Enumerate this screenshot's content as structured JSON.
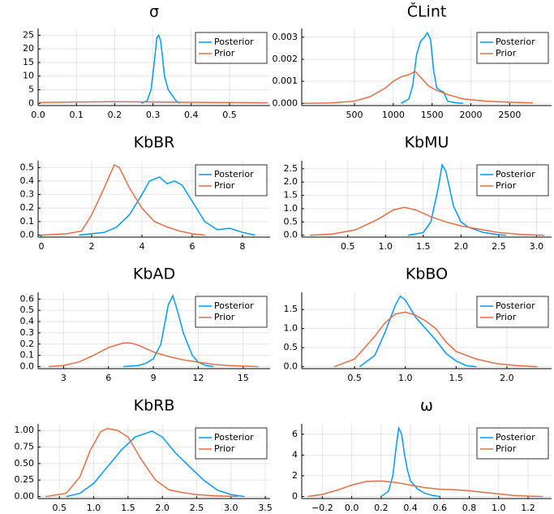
{
  "chart_data": [
    {
      "type": "line",
      "title": "σ",
      "legend": "topright",
      "grid": true,
      "xlim": [
        0,
        0.606
      ],
      "ylim": [
        -0.8,
        27.5
      ],
      "xticks": [
        {
          "value": 0,
          "label": "0.0"
        },
        0.1,
        0.2,
        0.3,
        0.4,
        0.5
      ],
      "yticks": [
        0,
        5,
        10,
        15,
        20,
        25
      ],
      "series": [
        {
          "name": "Posterior",
          "color": "#009AF9",
          "x": [
            0.27,
            0.285,
            0.295,
            0.305,
            0.31,
            0.315,
            0.32,
            0.325,
            0.33,
            0.34,
            0.35,
            0.36,
            0.37
          ],
          "values": [
            0,
            1,
            5,
            17,
            24,
            25,
            23,
            17,
            10,
            5,
            3,
            1,
            0
          ]
        },
        {
          "name": "Prior",
          "color": "#E36F47",
          "x": [
            0,
            0.1,
            0.2,
            0.3,
            0.4,
            0.5,
            0.6
          ],
          "values": [
            0.3,
            0.5,
            0.6,
            0.5,
            0.4,
            0.3,
            0.2
          ]
        }
      ]
    },
    {
      "type": "line",
      "title": "ČLint",
      "legend": "topright",
      "grid": true,
      "xlim": [
        -180,
        3040
      ],
      "ylim": [
        -0.0001,
        0.0034
      ],
      "xticks": [
        500,
        1000,
        1500,
        2000,
        2500
      ],
      "yticks": [
        {
          "value": 0,
          "label": "0.000"
        },
        0.001,
        0.002,
        0.003
      ],
      "series": [
        {
          "name": "Posterior",
          "color": "#009AF9",
          "x": [
            1100,
            1200,
            1250,
            1300,
            1350,
            1400,
            1440,
            1480,
            1520,
            1560,
            1600,
            1650,
            1700,
            1800,
            1900
          ],
          "values": [
            0,
            0.0002,
            0.0008,
            0.0022,
            0.0028,
            0.003,
            0.0032,
            0.0029,
            0.0015,
            0.0007,
            0.0006,
            0.0005,
            0.0001,
            3e-05,
            0
          ]
        },
        {
          "name": "Prior",
          "color": "#E36F47",
          "x": [
            -150,
            200,
            500,
            700,
            900,
            1000,
            1100,
            1200,
            1280,
            1350,
            1450,
            1550,
            1700,
            1900,
            2200,
            2500,
            2800
          ],
          "values": [
            0,
            2e-05,
            0.0001,
            0.0003,
            0.0007,
            0.001,
            0.0012,
            0.0013,
            0.00145,
            0.0012,
            0.0008,
            0.0006,
            0.0004,
            0.0002,
            0.0001,
            5e-05,
            2e-05
          ]
        }
      ]
    },
    {
      "type": "line",
      "title": "KbBR",
      "legend": "topright",
      "grid": true,
      "xlim": [
        -0.13,
        9.1
      ],
      "ylim": [
        -0.015,
        0.55
      ],
      "xticks": [
        0,
        2,
        4,
        6,
        8
      ],
      "yticks": [
        {
          "value": 0,
          "label": "0.0"
        },
        0.1,
        0.2,
        0.3,
        0.4,
        0.5
      ],
      "series": [
        {
          "name": "Posterior",
          "color": "#009AF9",
          "x": [
            1.5,
            2.5,
            3,
            3.5,
            4,
            4.3,
            4.7,
            5,
            5.3,
            5.6,
            6,
            6.5,
            7,
            7.5,
            8,
            8.5
          ],
          "values": [
            0,
            0.02,
            0.06,
            0.15,
            0.3,
            0.4,
            0.43,
            0.38,
            0.4,
            0.37,
            0.25,
            0.1,
            0.04,
            0.05,
            0.02,
            0
          ]
        },
        {
          "name": "Prior",
          "color": "#E36F47",
          "x": [
            0,
            1,
            1.6,
            2,
            2.5,
            2.9,
            3.1,
            3.5,
            4,
            4.5,
            5,
            5.5,
            6,
            6.5
          ],
          "values": [
            0,
            0.01,
            0.03,
            0.15,
            0.35,
            0.52,
            0.5,
            0.35,
            0.2,
            0.1,
            0.06,
            0.03,
            0.01,
            0
          ]
        }
      ]
    },
    {
      "type": "line",
      "title": "KbMU",
      "legend": "topright",
      "grid": true,
      "xlim": [
        -0.11,
        3.2
      ],
      "ylim": [
        -0.07,
        2.8
      ],
      "xticks": [
        0.5,
        {
          "value": 1,
          "label": "1.0"
        },
        1.5,
        {
          "value": 2,
          "label": "2.0"
        },
        2.5,
        {
          "value": 3,
          "label": "3.0"
        }
      ],
      "yticks": [
        {
          "value": 0,
          "label": "0.0"
        },
        0.5,
        {
          "value": 1,
          "label": "1.0"
        },
        1.5,
        {
          "value": 2,
          "label": "2.0"
        },
        2.5
      ],
      "series": [
        {
          "name": "Posterior",
          "color": "#009AF9",
          "x": [
            1.3,
            1.5,
            1.6,
            1.7,
            1.75,
            1.8,
            1.9,
            2.0,
            2.1,
            2.3,
            2.5,
            2.6
          ],
          "values": [
            0,
            0.1,
            0.5,
            1.8,
            2.65,
            2.4,
            1.1,
            0.5,
            0.3,
            0.1,
            0.02,
            0
          ]
        },
        {
          "name": "Prior",
          "color": "#E36F47",
          "x": [
            0,
            0.3,
            0.6,
            0.9,
            1.1,
            1.25,
            1.4,
            1.6,
            1.8,
            2.0,
            2.2,
            2.5,
            2.8,
            3.1
          ],
          "values": [
            0,
            0.05,
            0.2,
            0.6,
            0.95,
            1.05,
            0.95,
            0.7,
            0.5,
            0.35,
            0.25,
            0.1,
            0.03,
            0
          ]
        }
      ]
    },
    {
      "type": "line",
      "title": "KbAD",
      "legend": "topright",
      "grid": true,
      "xlim": [
        1.3,
        16.8
      ],
      "ylim": [
        -0.018,
        0.66
      ],
      "xticks": [
        3,
        6,
        9,
        12,
        15
      ],
      "yticks": [
        {
          "value": 0,
          "label": "0.0"
        },
        0.1,
        0.2,
        0.3,
        0.4,
        0.5,
        0.6
      ],
      "series": [
        {
          "name": "Posterior",
          "color": "#009AF9",
          "x": [
            7,
            8,
            8.5,
            9,
            9.5,
            10,
            10.3,
            10.6,
            11,
            11.3,
            11.6,
            12,
            12.5,
            13
          ],
          "values": [
            0,
            0.01,
            0.03,
            0.07,
            0.2,
            0.55,
            0.63,
            0.5,
            0.3,
            0.2,
            0.1,
            0.04,
            0.01,
            0
          ]
        },
        {
          "name": "Prior",
          "color": "#E36F47",
          "x": [
            2,
            3,
            4,
            5,
            6,
            7,
            7.5,
            8,
            9,
            10,
            11,
            12,
            13,
            14,
            15,
            16
          ],
          "values": [
            0,
            0.01,
            0.04,
            0.1,
            0.17,
            0.21,
            0.21,
            0.19,
            0.13,
            0.09,
            0.06,
            0.04,
            0.02,
            0.01,
            0.005,
            0
          ]
        }
      ]
    },
    {
      "type": "line",
      "title": "KbBO",
      "legend": "topright",
      "grid": true,
      "xlim": [
        -0.02,
        2.44
      ],
      "ylim": [
        -0.05,
        1.95
      ],
      "xticks": [
        0.5,
        {
          "value": 1,
          "label": "1.0"
        },
        1.5,
        {
          "value": 2,
          "label": "2.0"
        }
      ],
      "yticks": [
        {
          "value": 0,
          "label": "0.0"
        },
        0.5,
        {
          "value": 1,
          "label": "1.0"
        },
        1.5
      ],
      "series": [
        {
          "name": "Posterior",
          "color": "#009AF9",
          "x": [
            0.55,
            0.7,
            0.8,
            0.9,
            0.95,
            1.0,
            1.1,
            1.2,
            1.3,
            1.4,
            1.5,
            1.6,
            1.7
          ],
          "values": [
            0,
            0.3,
            0.9,
            1.6,
            1.85,
            1.75,
            1.3,
            1.0,
            0.7,
            0.35,
            0.15,
            0.03,
            0
          ]
        },
        {
          "name": "Prior",
          "color": "#E36F47",
          "x": [
            0.3,
            0.5,
            0.7,
            0.8,
            0.9,
            1.0,
            1.1,
            1.2,
            1.3,
            1.4,
            1.5,
            1.7,
            1.9,
            2.1,
            2.3
          ],
          "values": [
            0,
            0.2,
            0.8,
            1.15,
            1.38,
            1.43,
            1.35,
            1.2,
            1.0,
            0.65,
            0.4,
            0.2,
            0.08,
            0.03,
            0
          ]
        }
      ]
    },
    {
      "type": "line",
      "title": "KbRB",
      "legend": "topright",
      "grid": true,
      "xlim": [
        0.19,
        3.57
      ],
      "ylim": [
        -0.03,
        1.1
      ],
      "xticks": [
        0.5,
        {
          "value": 1,
          "label": "1.0"
        },
        1.5,
        {
          "value": 2,
          "label": "2.0"
        },
        2.5,
        {
          "value": 3,
          "label": "3.0"
        },
        3.5
      ],
      "yticks": [
        {
          "value": 0,
          "label": "0.00"
        },
        0.25,
        {
          "value": 0.5,
          "label": "0.50"
        },
        0.75,
        {
          "value": 1,
          "label": "1.00"
        }
      ],
      "series": [
        {
          "name": "Posterior",
          "color": "#009AF9",
          "x": [
            0.6,
            0.8,
            1.0,
            1.2,
            1.4,
            1.6,
            1.85,
            2.0,
            2.2,
            2.4,
            2.6,
            2.8,
            3.0,
            3.2
          ],
          "values": [
            0,
            0.05,
            0.2,
            0.45,
            0.7,
            0.9,
            0.99,
            0.9,
            0.65,
            0.45,
            0.25,
            0.1,
            0.03,
            0
          ]
        },
        {
          "name": "Prior",
          "color": "#E36F47",
          "x": [
            0.3,
            0.6,
            0.8,
            0.95,
            1.1,
            1.2,
            1.35,
            1.5,
            1.7,
            1.9,
            2.1,
            2.3,
            2.5,
            2.8,
            3.1
          ],
          "values": [
            0,
            0.05,
            0.3,
            0.7,
            0.98,
            1.03,
            1.0,
            0.9,
            0.55,
            0.25,
            0.1,
            0.06,
            0.03,
            0.01,
            0
          ]
        }
      ]
    },
    {
      "type": "line",
      "title": "ω",
      "legend": "topright",
      "grid": true,
      "xlim": [
        -0.34,
        1.36
      ],
      "ylim": [
        -0.2,
        7.0
      ],
      "xticks": [
        {
          "value": -0.2,
          "label": "−0.2"
        },
        {
          "value": 0,
          "label": "0.0"
        },
        0.2,
        0.4,
        0.6,
        0.8,
        {
          "value": 1,
          "label": "1.0"
        },
        1.2
      ],
      "yticks": [
        0,
        2,
        4,
        6
      ],
      "series": [
        {
          "name": "Posterior",
          "color": "#009AF9",
          "x": [
            0.2,
            0.25,
            0.28,
            0.3,
            0.32,
            0.34,
            0.36,
            0.38,
            0.4,
            0.45,
            0.5,
            0.55,
            0.6
          ],
          "values": [
            0,
            0.5,
            2,
            4.5,
            6.6,
            6,
            4,
            2.5,
            1.5,
            0.7,
            0.3,
            0.1,
            0
          ]
        },
        {
          "name": "Prior",
          "color": "#E36F47",
          "x": [
            -0.3,
            -0.2,
            -0.1,
            0.0,
            0.1,
            0.2,
            0.3,
            0.4,
            0.5,
            0.6,
            0.7,
            0.8,
            0.9,
            1.0,
            1.1,
            1.2,
            1.3
          ],
          "values": [
            0,
            0.2,
            0.6,
            1.1,
            1.45,
            1.5,
            1.35,
            1.1,
            0.85,
            0.7,
            0.65,
            0.55,
            0.4,
            0.25,
            0.1,
            0.03,
            0
          ]
        }
      ]
    }
  ]
}
